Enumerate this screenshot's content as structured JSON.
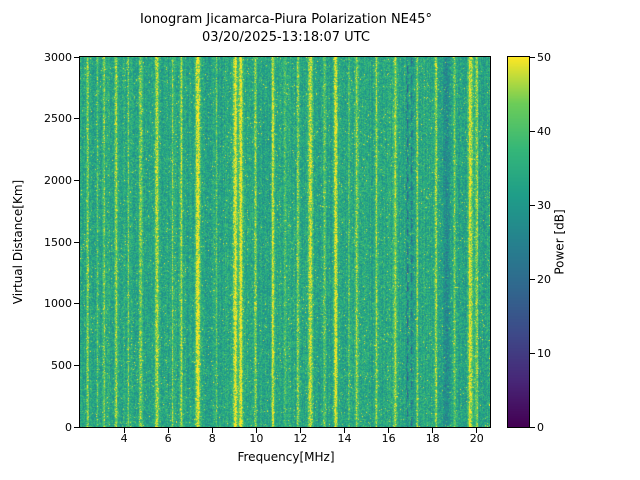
{
  "chart_data": {
    "type": "heatmap",
    "title": "Ionogram Jicamarca-Piura Polarization NE45°",
    "subtitle": "03/20/2025-13:18:07 UTC",
    "xlabel": "Frequency[MHz]",
    "ylabel": "Virtual Distance[Km]",
    "colorbar_label": "Power [dB]",
    "x_range": [
      2.0,
      20.6
    ],
    "y_range": [
      0,
      3000
    ],
    "color_range": [
      0,
      50
    ],
    "x_ticks": [
      4,
      6,
      8,
      10,
      12,
      14,
      16,
      18,
      20
    ],
    "y_ticks": [
      0,
      500,
      1000,
      1500,
      2000,
      2500,
      3000
    ],
    "colorbar_ticks": [
      0,
      10,
      20,
      30,
      40,
      50
    ],
    "colormap": "viridis",
    "colormap_stops": [
      [
        0.0,
        68,
        1,
        84
      ],
      [
        0.125,
        72,
        40,
        120
      ],
      [
        0.25,
        62,
        74,
        137
      ],
      [
        0.375,
        49,
        104,
        142
      ],
      [
        0.5,
        38,
        130,
        142
      ],
      [
        0.625,
        31,
        158,
        137
      ],
      [
        0.75,
        53,
        183,
        121
      ],
      [
        0.875,
        109,
        205,
        89
      ],
      [
        1.0,
        253,
        231,
        37
      ]
    ],
    "background_power_db": {
      "mean": 33,
      "spread": 12,
      "column_jitter": 5,
      "speckle_prob": 0.05
    },
    "rfi_lines": [
      {
        "center_mhz": 2.35,
        "boost_db": 13,
        "halfwidth_mhz": 0.05
      },
      {
        "center_mhz": 2.8,
        "boost_db": 9,
        "halfwidth_mhz": 0.04
      },
      {
        "center_mhz": 3.1,
        "boost_db": 12,
        "halfwidth_mhz": 0.05
      },
      {
        "center_mhz": 3.65,
        "boost_db": 13,
        "halfwidth_mhz": 0.06
      },
      {
        "center_mhz": 4.2,
        "boost_db": 9,
        "halfwidth_mhz": 0.04
      },
      {
        "center_mhz": 4.75,
        "boost_db": 13,
        "halfwidth_mhz": 0.06
      },
      {
        "center_mhz": 5.5,
        "boost_db": 14,
        "halfwidth_mhz": 0.09
      },
      {
        "center_mhz": 6.2,
        "boost_db": 10,
        "halfwidth_mhz": 0.04
      },
      {
        "center_mhz": 6.6,
        "boost_db": 12,
        "halfwidth_mhz": 0.05
      },
      {
        "center_mhz": 7.35,
        "boost_db": 18,
        "halfwidth_mhz": 0.11
      },
      {
        "center_mhz": 8.2,
        "boost_db": 9,
        "halfwidth_mhz": 0.04
      },
      {
        "center_mhz": 9.05,
        "boost_db": 18,
        "halfwidth_mhz": 0.09
      },
      {
        "center_mhz": 9.3,
        "boost_db": 18,
        "halfwidth_mhz": 0.09
      },
      {
        "center_mhz": 9.95,
        "boost_db": 13,
        "halfwidth_mhz": 0.06
      },
      {
        "center_mhz": 10.75,
        "boost_db": 14,
        "halfwidth_mhz": 0.07
      },
      {
        "center_mhz": 11.3,
        "boost_db": 9,
        "halfwidth_mhz": 0.05
      },
      {
        "center_mhz": 11.9,
        "boost_db": 12,
        "halfwidth_mhz": 0.06
      },
      {
        "center_mhz": 12.45,
        "boost_db": 16,
        "halfwidth_mhz": 0.09
      },
      {
        "center_mhz": 13.1,
        "boost_db": 11,
        "halfwidth_mhz": 0.05
      },
      {
        "center_mhz": 13.6,
        "boost_db": 15,
        "halfwidth_mhz": 0.08
      },
      {
        "center_mhz": 14.2,
        "boost_db": 8,
        "halfwidth_mhz": 0.04
      },
      {
        "center_mhz": 14.55,
        "boost_db": 12,
        "halfwidth_mhz": 0.06
      },
      {
        "center_mhz": 15.45,
        "boost_db": 12,
        "halfwidth_mhz": 0.06
      },
      {
        "center_mhz": 16.3,
        "boost_db": 11,
        "halfwidth_mhz": 0.06
      },
      {
        "center_mhz": 17.3,
        "boost_db": 11,
        "halfwidth_mhz": 0.05
      },
      {
        "center_mhz": 18.15,
        "boost_db": 12,
        "halfwidth_mhz": 0.06
      },
      {
        "center_mhz": 19.0,
        "boost_db": 11,
        "halfwidth_mhz": 0.05
      },
      {
        "center_mhz": 19.7,
        "boost_db": 17,
        "halfwidth_mhz": 0.1
      },
      {
        "center_mhz": 20.0,
        "boost_db": 13,
        "halfwidth_mhz": 0.06
      }
    ],
    "dark_lines": [
      {
        "center_mhz": 16.85,
        "boost_db": -13,
        "halfwidth_mhz": 0.05,
        "dashed": true
      },
      {
        "center_mhz": 17.05,
        "boost_db": -10,
        "halfwidth_mhz": 0.04,
        "dashed": true
      },
      {
        "center_mhz": 18.6,
        "boost_db": -7,
        "halfwidth_mhz": 0.12,
        "dashed": false
      }
    ],
    "noise_seed": 42
  }
}
